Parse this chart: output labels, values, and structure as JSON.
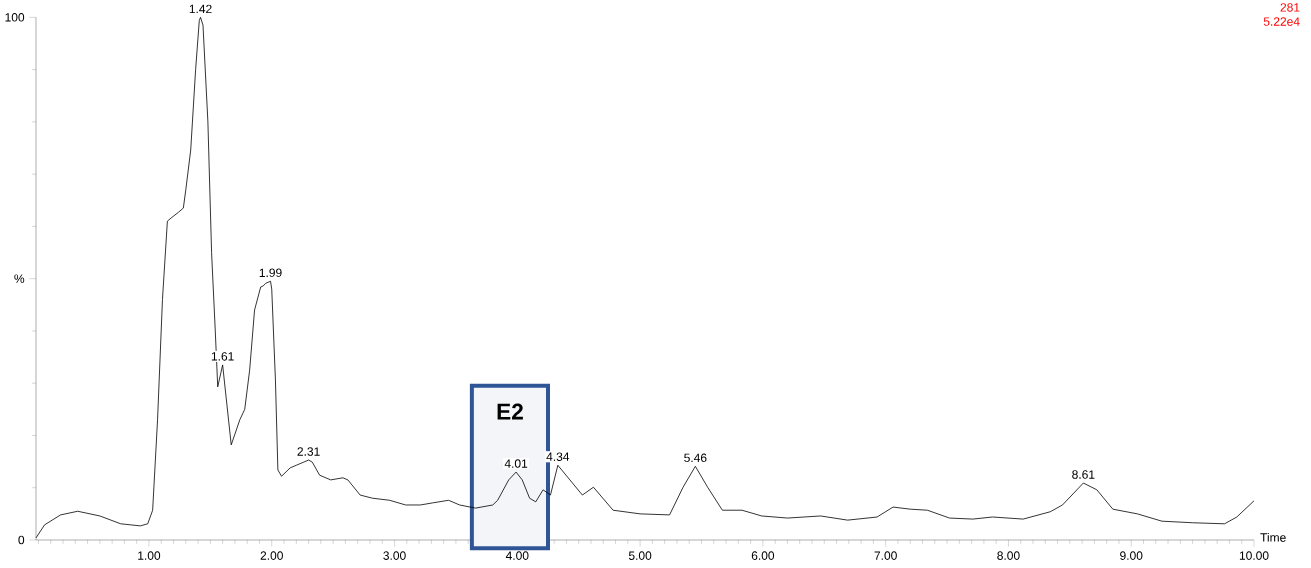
{
  "chart_data": {
    "type": "line",
    "xlabel": "Time",
    "x": [
      0.08,
      0.15,
      0.28,
      0.42,
      0.6,
      0.77,
      0.93,
      0.99,
      1.03,
      1.07,
      1.11,
      1.15,
      1.18,
      1.24,
      1.28,
      1.3,
      1.34,
      1.38,
      1.41,
      1.42,
      1.44,
      1.48,
      1.51,
      1.54,
      1.56,
      1.6,
      1.67,
      1.74,
      1.78,
      1.82,
      1.86,
      1.91,
      1.93,
      1.95,
      1.99,
      2.0,
      2.03,
      2.05,
      2.08,
      2.15,
      2.2,
      2.3,
      2.33,
      2.39,
      2.48,
      2.58,
      2.62,
      2.72,
      2.82,
      2.96,
      3.09,
      3.21,
      3.31,
      3.44,
      3.53,
      3.66,
      3.8,
      3.84,
      3.93,
      3.99,
      4.04,
      4.1,
      4.15,
      4.21,
      4.27,
      4.33,
      4.53,
      4.62,
      4.78,
      5.0,
      5.24,
      5.35,
      5.45,
      5.55,
      5.67,
      5.83,
      5.99,
      6.2,
      6.47,
      6.69,
      6.93,
      7.06,
      7.2,
      7.34,
      7.52,
      7.71,
      7.87,
      8.12,
      8.34,
      8.44,
      8.61,
      8.72,
      8.85,
      9.05,
      9.25,
      9.5,
      9.76,
      9.86,
      10.0
    ],
    "series": [
      {
        "color": "#000000",
        "values": [
          0.4,
          2.9,
          4.8,
          5.5,
          4.6,
          3.1,
          2.7,
          3.1,
          5.7,
          23,
          46,
          61,
          61.6,
          62.7,
          63.5,
          67,
          74.6,
          90,
          99.4,
          100,
          98.5,
          80,
          55,
          40,
          29.3,
          33.5,
          18.2,
          23,
          25,
          32.5,
          44,
          48.4,
          48.6,
          49.1,
          49.5,
          48,
          30.6,
          13.4,
          12.2,
          13.8,
          14.3,
          15.3,
          14.9,
          12.4,
          11.5,
          11.9,
          11.5,
          8.6,
          8,
          7.6,
          6.7,
          6.7,
          7.1,
          7.6,
          6.7,
          6.1,
          6.7,
          7.6,
          11.5,
          13,
          11.5,
          8,
          7.3,
          9.6,
          8.6,
          14.3,
          8.6,
          10.1,
          5.7,
          5,
          4.8,
          10.1,
          14.1,
          10.1,
          5.7,
          5.7,
          4.6,
          4.2,
          4.6,
          3.8,
          4.4,
          6.3,
          5.9,
          5.7,
          4.2,
          4,
          4.4,
          4,
          5.4,
          6.7,
          10.9,
          9.6,
          5.9,
          5,
          3.6,
          3.3,
          3.1,
          4.4,
          7.5
        ]
      }
    ],
    "xlim": [
      0.08,
      10.0
    ],
    "ylim": [
      0,
      100
    ],
    "xticks": [
      {
        "value": 1,
        "label": "1.00"
      },
      {
        "value": 2,
        "label": "2.00"
      },
      {
        "value": 3,
        "label": "3.00"
      },
      {
        "value": 4,
        "label": "4.00"
      },
      {
        "value": 5,
        "label": "5.00"
      },
      {
        "value": 6,
        "label": "6.00"
      },
      {
        "value": 7,
        "label": "7.00"
      },
      {
        "value": 8,
        "label": "8.00"
      },
      {
        "value": 9,
        "label": "9.00"
      },
      {
        "value": 10,
        "label": "10.00"
      },
      {
        "value": 0.1,
        "label": null
      },
      {
        "value": 0.2,
        "label": null
      },
      {
        "value": 0.3,
        "label": null
      },
      {
        "value": 0.4,
        "label": null
      },
      {
        "value": 0.5,
        "label": null
      },
      {
        "value": 0.6,
        "label": null
      },
      {
        "value": 0.7,
        "label": null
      },
      {
        "value": 0.8,
        "label": null
      },
      {
        "value": 0.9,
        "label": null
      },
      {
        "value": 1.1,
        "label": null
      },
      {
        "value": 1.2,
        "label": null
      },
      {
        "value": 1.3,
        "label": null
      },
      {
        "value": 1.4,
        "label": null
      },
      {
        "value": 1.5,
        "label": null
      },
      {
        "value": 1.6,
        "label": null
      },
      {
        "value": 1.7,
        "label": null
      },
      {
        "value": 1.8,
        "label": null
      },
      {
        "value": 1.9,
        "label": null
      },
      {
        "value": 2.1,
        "label": null
      },
      {
        "value": 2.2,
        "label": null
      },
      {
        "value": 2.3,
        "label": null
      },
      {
        "value": 2.4,
        "label": null
      },
      {
        "value": 2.5,
        "label": null
      },
      {
        "value": 2.6,
        "label": null
      },
      {
        "value": 2.7,
        "label": null
      },
      {
        "value": 2.8,
        "label": null
      },
      {
        "value": 2.9,
        "label": null
      },
      {
        "value": 3.1,
        "label": null
      },
      {
        "value": 3.2,
        "label": null
      },
      {
        "value": 3.3,
        "label": null
      },
      {
        "value": 3.4,
        "label": null
      },
      {
        "value": 3.5,
        "label": null
      },
      {
        "value": 3.6,
        "label": null
      },
      {
        "value": 3.7,
        "label": null
      },
      {
        "value": 3.8,
        "label": null
      },
      {
        "value": 3.9,
        "label": null
      },
      {
        "value": 4.1,
        "label": null
      },
      {
        "value": 4.2,
        "label": null
      },
      {
        "value": 4.3,
        "label": null
      },
      {
        "value": 4.4,
        "label": null
      },
      {
        "value": 4.5,
        "label": null
      },
      {
        "value": 4.6,
        "label": null
      },
      {
        "value": 4.7,
        "label": null
      },
      {
        "value": 4.8,
        "label": null
      },
      {
        "value": 4.9,
        "label": null
      },
      {
        "value": 5.1,
        "label": null
      },
      {
        "value": 5.2,
        "label": null
      },
      {
        "value": 5.3,
        "label": null
      },
      {
        "value": 5.4,
        "label": null
      },
      {
        "value": 5.5,
        "label": null
      },
      {
        "value": 5.6,
        "label": null
      },
      {
        "value": 5.7,
        "label": null
      },
      {
        "value": 5.8,
        "label": null
      },
      {
        "value": 5.9,
        "label": null
      },
      {
        "value": 6.1,
        "label": null
      },
      {
        "value": 6.2,
        "label": null
      },
      {
        "value": 6.3,
        "label": null
      },
      {
        "value": 6.4,
        "label": null
      },
      {
        "value": 6.5,
        "label": null
      },
      {
        "value": 6.6,
        "label": null
      },
      {
        "value": 6.7,
        "label": null
      },
      {
        "value": 6.8,
        "label": null
      },
      {
        "value": 6.9,
        "label": null
      },
      {
        "value": 7.1,
        "label": null
      },
      {
        "value": 7.2,
        "label": null
      },
      {
        "value": 7.3,
        "label": null
      },
      {
        "value": 7.4,
        "label": null
      },
      {
        "value": 7.5,
        "label": null
      },
      {
        "value": 7.6,
        "label": null
      },
      {
        "value": 7.7,
        "label": null
      },
      {
        "value": 7.8,
        "label": null
      },
      {
        "value": 7.9,
        "label": null
      },
      {
        "value": 8.1,
        "label": null
      },
      {
        "value": 8.2,
        "label": null
      },
      {
        "value": 8.3,
        "label": null
      },
      {
        "value": 8.4,
        "label": null
      },
      {
        "value": 8.5,
        "label": null
      },
      {
        "value": 8.6,
        "label": null
      },
      {
        "value": 8.7,
        "label": null
      },
      {
        "value": 8.8,
        "label": null
      },
      {
        "value": 8.9,
        "label": null
      },
      {
        "value": 9.1,
        "label": null
      },
      {
        "value": 9.2,
        "label": null
      },
      {
        "value": 9.3,
        "label": null
      },
      {
        "value": 9.4,
        "label": null
      },
      {
        "value": 9.5,
        "label": null
      },
      {
        "value": 9.6,
        "label": null
      },
      {
        "value": 9.7,
        "label": null
      },
      {
        "value": 9.8,
        "label": null
      },
      {
        "value": 9.9,
        "label": null
      }
    ],
    "yticks": [
      0,
      {
        "value": 50,
        "label": "%"
      },
      100,
      {
        "value": 10,
        "label": null
      },
      {
        "value": 20,
        "label": null
      },
      {
        "value": 30,
        "label": null
      },
      {
        "value": 40,
        "label": null
      },
      {
        "value": 60,
        "label": null
      },
      {
        "value": 70,
        "label": null
      },
      {
        "value": 80,
        "label": null
      },
      {
        "value": 90,
        "label": null
      }
    ],
    "bands": [
      {
        "axis": "x",
        "from": 3.63,
        "to": 4.25,
        "label": "E2",
        "color": "#2f5597"
      }
    ],
    "annotations": [
      {
        "text": "1.42",
        "x": 1.42,
        "y": 100
      },
      {
        "text": "1.61",
        "x": 1.6,
        "y": 33.5
      },
      {
        "text": "1.99",
        "x": 1.99,
        "y": 49.5
      },
      {
        "text": "2.31",
        "x": 2.3,
        "y": 15.3
      },
      {
        "text": "4.01",
        "x": 3.99,
        "y": 13
      },
      {
        "text": "4.34",
        "x": 4.33,
        "y": 14.3
      },
      {
        "text": "5.46",
        "x": 5.45,
        "y": 14.1
      },
      {
        "text": "8.61",
        "x": 8.61,
        "y": 10.9
      },
      "281",
      "5.22e4"
    ],
    "marker": "none",
    "line_style": "solid",
    "legend": false,
    "grid": false
  }
}
